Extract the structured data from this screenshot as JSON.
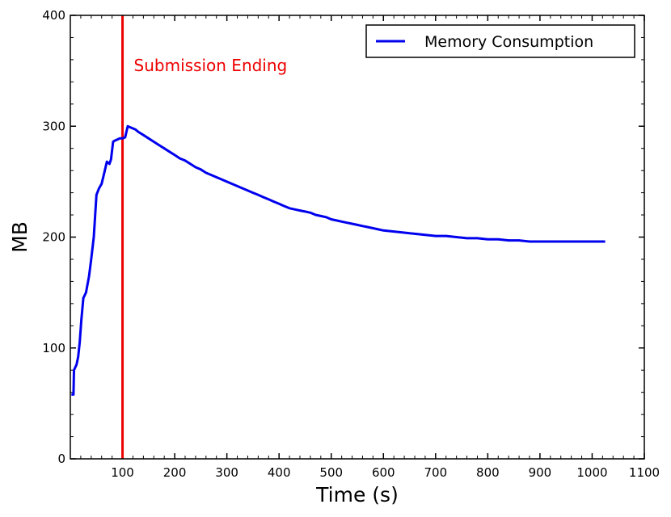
{
  "chart_data": {
    "type": "line",
    "xlabel": "Time (s)",
    "ylabel": "MB",
    "xlim": [
      0,
      1100
    ],
    "ylim": [
      0,
      400
    ],
    "x_ticks": [
      100,
      200,
      300,
      400,
      500,
      600,
      700,
      800,
      900,
      1000,
      1100
    ],
    "y_ticks": [
      0,
      100,
      200,
      300,
      400
    ],
    "grid": false,
    "legend": {
      "position": "top-right",
      "entries": [
        "Memory Consumption"
      ]
    },
    "colors": {
      "series": "#0000ee",
      "annotation": "#ee0000"
    },
    "annotation": {
      "x": 100,
      "text": "Submission Ending"
    },
    "series": [
      {
        "name": "Memory Consumption",
        "x": [
          2,
          6,
          7,
          12,
          15,
          18,
          21,
          25,
          30,
          36,
          40,
          45,
          50,
          55,
          60,
          65,
          70,
          75,
          78,
          82,
          85,
          90,
          95,
          100,
          105,
          110,
          115,
          120,
          125,
          130,
          140,
          150,
          160,
          170,
          180,
          190,
          200,
          210,
          220,
          230,
          240,
          250,
          260,
          270,
          280,
          290,
          300,
          310,
          320,
          330,
          340,
          350,
          360,
          370,
          380,
          390,
          400,
          410,
          420,
          430,
          440,
          450,
          460,
          470,
          480,
          490,
          500,
          510,
          520,
          530,
          540,
          550,
          560,
          570,
          580,
          590,
          600,
          620,
          640,
          660,
          680,
          700,
          720,
          740,
          760,
          780,
          800,
          820,
          840,
          860,
          880,
          900,
          920,
          940,
          960,
          980,
          1000,
          1025
        ],
        "y": [
          58,
          58,
          80,
          85,
          92,
          105,
          125,
          145,
          150,
          165,
          180,
          200,
          238,
          244,
          248,
          258,
          268,
          266,
          270,
          286,
          287,
          288,
          289,
          289,
          290,
          300,
          299,
          298,
          297,
          295,
          292,
          289,
          286,
          283,
          280,
          277,
          274,
          271,
          269,
          266,
          263,
          261,
          258,
          256,
          254,
          252,
          250,
          248,
          246,
          244,
          242,
          240,
          238,
          236,
          234,
          232,
          230,
          228,
          226,
          225,
          224,
          223,
          222,
          220,
          219,
          218,
          216,
          215,
          214,
          213,
          212,
          211,
          210,
          209,
          208,
          207,
          206,
          205,
          204,
          203,
          202,
          201,
          201,
          200,
          199,
          199,
          198,
          198,
          197,
          197,
          196,
          196,
          196,
          196,
          196,
          196,
          196,
          196
        ]
      }
    ]
  }
}
